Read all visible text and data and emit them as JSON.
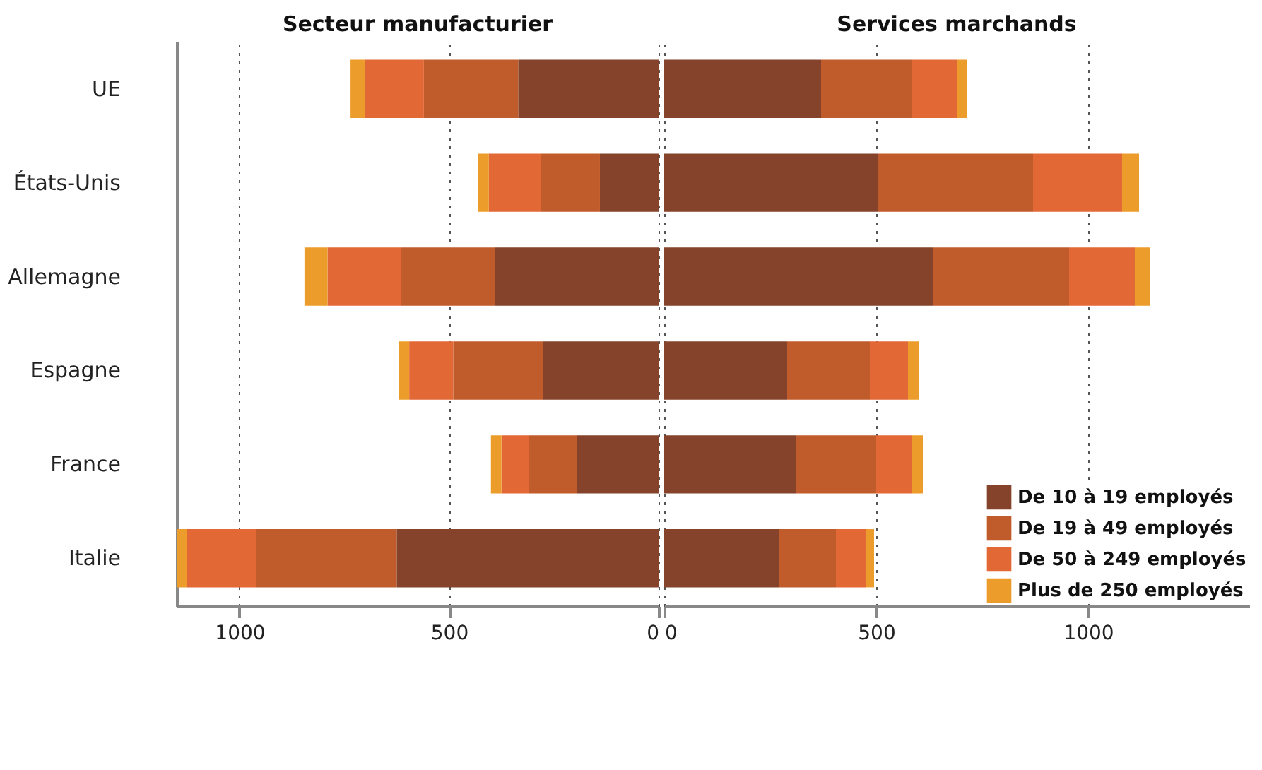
{
  "chart_data": [
    {
      "type": "bar",
      "orientation": "horizontal",
      "stacked": true,
      "title": "Secteur manufacturier",
      "categories": [
        "UE",
        "États-Unis",
        "Allemagne",
        "Espagne",
        "France",
        "Italie"
      ],
      "series": [
        {
          "color": "#84432a",
          "values": [
            335,
            140,
            390,
            275,
            195,
            625
          ]
        },
        {
          "color": "#c05c2b",
          "values": [
            225,
            140,
            225,
            215,
            115,
            335
          ]
        },
        {
          "color": "#e26836",
          "values": [
            140,
            125,
            175,
            105,
            65,
            165
          ]
        },
        {
          "color": "#ec9c2a",
          "values": [
            35,
            25,
            55,
            25,
            25,
            25
          ]
        }
      ],
      "xlim": [
        1150,
        0
      ],
      "xticks": [
        1000,
        500,
        0
      ],
      "grid": "x"
    },
    {
      "type": "bar",
      "orientation": "horizontal",
      "stacked": true,
      "title": "Services marchands",
      "categories": [
        null,
        null,
        null,
        null,
        null,
        null
      ],
      "series": [
        {
          "name": "De 10 à 19 employés",
          "color": "#84432a",
          "values": [
            370,
            505,
            635,
            290,
            310,
            270
          ]
        },
        {
          "name": "De 19 à 49 employés",
          "color": "#c05c2b",
          "values": [
            215,
            365,
            320,
            195,
            190,
            135
          ]
        },
        {
          "name": "De 50 à 249 employés",
          "color": "#e26836",
          "values": [
            105,
            210,
            155,
            90,
            85,
            70
          ]
        },
        {
          "name": "Plus de 250 employés",
          "color": "#ec9c2a",
          "values": [
            25,
            40,
            35,
            25,
            25,
            20
          ]
        }
      ],
      "xlim": [
        0,
        1380
      ],
      "xticks": [
        0,
        500,
        1000
      ],
      "grid": "x",
      "legend": "bottom right",
      "tick_labels": "x"
    }
  ]
}
